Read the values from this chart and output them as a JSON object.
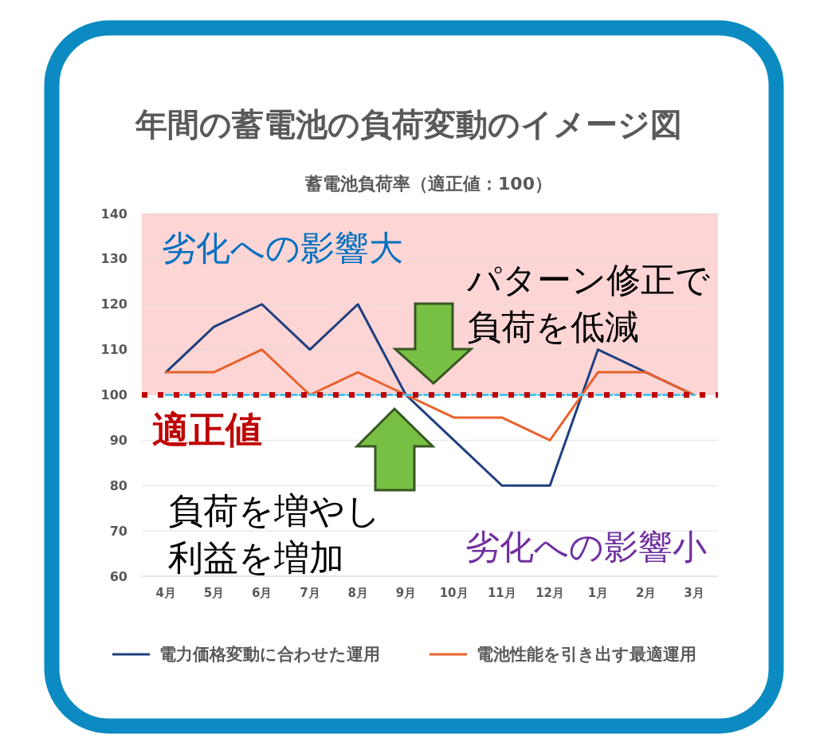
{
  "chart_data": {
    "type": "line",
    "title": "年間の蓄電池の負荷変動のイメージ図",
    "subtitle": "蓄電池負荷率（適正値：100）",
    "categories": [
      "4月",
      "5月",
      "6月",
      "7月",
      "8月",
      "9月",
      "10月",
      "11月",
      "12月",
      "1月",
      "2月",
      "3月"
    ],
    "series": [
      {
        "name": "電力価格変動に合わせた運用",
        "color": "#1f3f7f",
        "values": [
          105,
          115,
          120,
          110,
          120,
          100,
          90,
          80,
          80,
          110,
          105,
          100
        ]
      },
      {
        "name": "電池性能を引き出す最適運用",
        "color": "#e8622c",
        "values": [
          105,
          105,
          110,
          100,
          105,
          100,
          95,
          95,
          90,
          105,
          105,
          100
        ]
      },
      {
        "color": "#4dc3ee",
        "line_style": "dashed",
        "values": [
          100,
          100,
          100,
          100,
          100,
          100,
          100,
          100,
          100,
          100,
          100,
          100
        ]
      }
    ],
    "ylim": [
      60,
      140
    ],
    "yticks": [
      60,
      70,
      80,
      90,
      100,
      110,
      120,
      130,
      140
    ],
    "grid": "y",
    "legend": "bottom",
    "line_style": "solid",
    "bands": [
      {
        "axis": "y",
        "from": 100,
        "to": 140,
        "label": "劣化への影響大",
        "color": "#fdd5d5"
      }
    ],
    "ref_lines": [
      {
        "axis": "y",
        "value": 100,
        "label": "適正値",
        "color": "#c00000",
        "line_style": "dotted"
      }
    ],
    "annotations": [
      "パターン修正で",
      "負荷を低減",
      "負荷を増やし",
      "利益を増加",
      "劣化への影響小"
    ]
  }
}
